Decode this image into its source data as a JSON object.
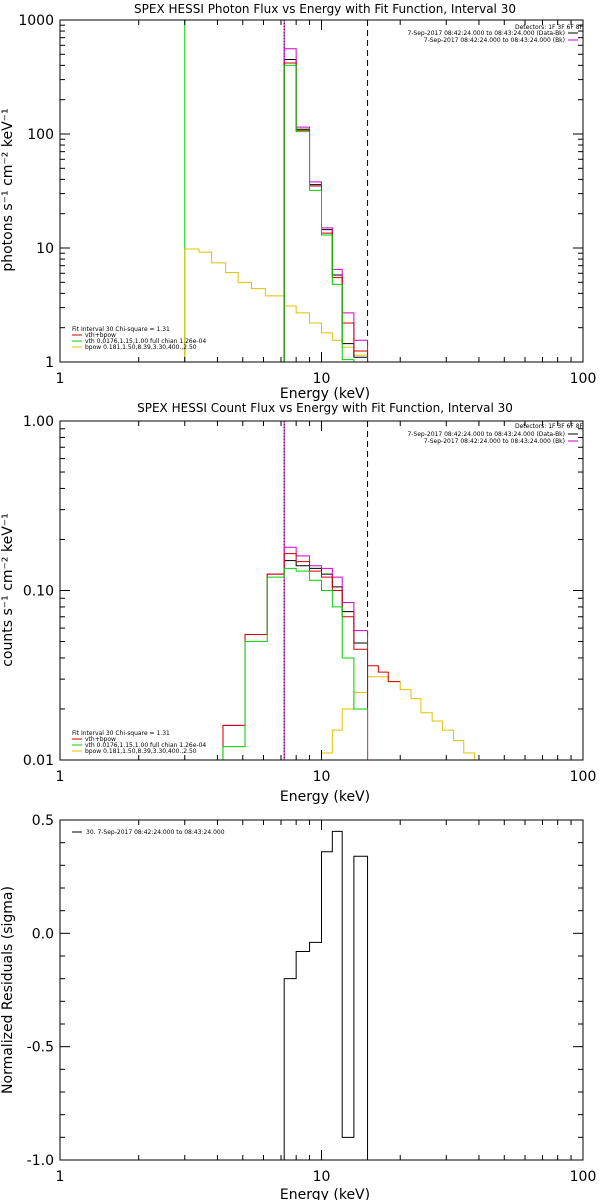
{
  "chart_data": [
    {
      "type": "line",
      "title": "SPEX HESSI Photon Flux vs Energy with Fit Function, Interval 30",
      "xlabel": "Energy (keV)",
      "ylabel": "photons s⁻¹ cm⁻² keV⁻¹",
      "xscale": "log",
      "yscale": "log",
      "xlim": [
        1,
        100
      ],
      "ylim": [
        1,
        1000
      ],
      "xticks": [
        "1",
        "10",
        "100"
      ],
      "yticks": [
        "1",
        "10",
        "100",
        "1000"
      ],
      "grid": false,
      "legend_position": "top-right",
      "detectors_label": "Detectors: 1F 3F 6F 8F",
      "legend": [
        {
          "text": "7-Sep-2017 08:42:24.000 to 08:43:24.000 (Data-Bk)",
          "color": "#000000"
        },
        {
          "text": "7-Sep-2017 08:42:24.000 to 08:43:24.000 (Bk)",
          "color": "#d000d0"
        }
      ],
      "fit_label": "Fit Interval 30   Chi-square = 1.31",
      "fit_legend": [
        {
          "text": "vth+bpow",
          "color": "#d00000"
        },
        {
          "text": "vth 0.0176,1.15,1.00  full chian 1.26e-04",
          "color": "#00d000"
        },
        {
          "text": "bpow 0.181,1.50,8.39,3.30,400.,2.50",
          "color": "#e0c000"
        }
      ],
      "vlines": [
        {
          "x": 3.0,
          "style": "solid",
          "color": "#00d000"
        },
        {
          "x": 7.2,
          "style": "solid",
          "color": "#d000d0"
        },
        {
          "x": 7.2,
          "style": "dotted",
          "color": "#000000"
        },
        {
          "x": 15.0,
          "style": "dashed",
          "color": "#000000"
        }
      ],
      "edges": [
        7.2,
        8.0,
        9.0,
        10.0,
        11.0,
        12.0,
        13.3,
        15.0
      ],
      "series": [
        {
          "color": "#000000",
          "values": [
            450,
            110,
            36,
            14.5,
            5.8,
            1.45,
            1.1
          ]
        },
        {
          "color": "#d000d0",
          "values": [
            560,
            115,
            38,
            15,
            6.5,
            2.7,
            1.55
          ]
        },
        {
          "color": "#d00000",
          "values": [
            420,
            108,
            35,
            13.5,
            5.5,
            2.2,
            1.25
          ]
        },
        {
          "color": "#00d000",
          "values": [
            400,
            105,
            32,
            13,
            4.8,
            1.05,
            0.8
          ]
        }
      ],
      "bpow": {
        "color": "#e0c000",
        "edges": [
          3.0,
          3.4,
          3.8,
          4.3,
          4.8,
          5.4,
          6.1,
          7.2,
          8.0,
          9.0,
          10.0,
          11.0,
          12.0,
          13.3,
          15.0
        ],
        "values": [
          9.8,
          9.2,
          7.4,
          6.1,
          5.0,
          4.4,
          3.8,
          3.1,
          2.7,
          2.2,
          1.8,
          1.55,
          1.35,
          1.15
        ]
      }
    },
    {
      "type": "line",
      "title": "SPEX HESSI Count Flux vs Energy with Fit Function, Interval 30",
      "xlabel": "Energy (keV)",
      "ylabel": "counts s⁻¹ cm⁻² keV⁻¹",
      "xscale": "log",
      "yscale": "log",
      "xlim": [
        1,
        100
      ],
      "ylim": [
        0.01,
        1.0
      ],
      "xticks": [
        "1",
        "10",
        "100"
      ],
      "yticks": [
        "0.01",
        "0.10",
        "1.00"
      ],
      "grid": false,
      "legend_position": "top-right",
      "detectors_label": "Detectors: 1F 3F 6F 8F",
      "legend": [
        {
          "text": "7-Sep-2017 08:42:24.000 to 08:43:24.000 (Data-Bk)",
          "color": "#000000"
        },
        {
          "text": "7-Sep-2017 08:42:24.000 to 08:43:24.000 (Bk)",
          "color": "#d000d0"
        }
      ],
      "fit_label": "Fit Interval 30   Chi-square = 1.31",
      "fit_legend": [
        {
          "text": "vth+bpow",
          "color": "#d00000"
        },
        {
          "text": "vth 0.0176,1.15,1.00  full chian 1.26e-04",
          "color": "#00d000"
        },
        {
          "text": "bpow 0.181,1.50,8.39,3.30,400.,2.50",
          "color": "#e0c000"
        }
      ],
      "vlines": [
        {
          "x": 7.2,
          "style": "solid",
          "color": "#d000d0"
        },
        {
          "x": 7.2,
          "style": "dotted",
          "color": "#000000"
        },
        {
          "x": 15.0,
          "style": "dashed",
          "color": "#000000"
        }
      ],
      "edges": [
        4.2,
        5.1,
        6.2,
        7.2,
        8.0,
        9.0,
        10.0,
        11.0,
        12.0,
        13.3,
        15.0
      ],
      "series": [
        {
          "color": "#000000",
          "values": [
            null,
            null,
            null,
            0.15,
            0.14,
            0.135,
            0.125,
            0.105,
            0.075,
            0.049
          ]
        },
        {
          "color": "#d000d0",
          "values": [
            0.016,
            0.055,
            0.125,
            0.18,
            0.16,
            0.14,
            0.135,
            0.12,
            0.085,
            0.058
          ]
        },
        {
          "color": "#d00000",
          "values": [
            0.016,
            0.055,
            0.125,
            0.165,
            0.148,
            0.13,
            0.12,
            0.1,
            0.07,
            0.045
          ]
        },
        {
          "color": "#00d000",
          "values": [
            0.012,
            0.05,
            0.12,
            0.135,
            0.13,
            0.115,
            0.1,
            0.08,
            0.04,
            0.02
          ]
        }
      ],
      "tail": {
        "color": "#d00000",
        "edges": [
          15.0,
          16.5,
          18.0,
          20.0
        ],
        "values": [
          0.036,
          0.033,
          0.029
        ]
      },
      "bpow": {
        "color": "#e0c000",
        "edges": [
          9.0,
          10.0,
          11.0,
          12.0,
          13.3,
          15.0,
          16.5,
          18.0,
          20.0,
          22.0,
          24.0,
          26.5,
          29.0,
          32.0,
          35.0,
          38.5,
          42.0
        ],
        "values": [
          0.009,
          0.011,
          0.015,
          0.02,
          0.025,
          0.031,
          0.031,
          0.029,
          0.026,
          0.023,
          0.019,
          0.017,
          0.015,
          0.013,
          0.011,
          0.009
        ]
      }
    },
    {
      "type": "line",
      "xlabel": "Energy (keV)",
      "ylabel": "Normalized Residuals (sigma)",
      "xscale": "log",
      "yscale": "linear",
      "xlim": [
        1,
        100
      ],
      "ylim": [
        -1.0,
        0.5
      ],
      "xticks": [
        "1",
        "10",
        "100"
      ],
      "yticks": [
        "-1.0",
        "-0.5",
        "0.0",
        "0.5"
      ],
      "grid": false,
      "legend_position": "top-left",
      "legend": [
        {
          "text": "30.  7-Sep-2017 08:42:24.000 to 08:43:24.000",
          "color": "#000000"
        }
      ],
      "edges": [
        7.2,
        8.0,
        9.0,
        10.0,
        11.0,
        12.0,
        13.3,
        15.0
      ],
      "series": [
        {
          "color": "#000000",
          "values": [
            -0.2,
            -0.08,
            -0.04,
            0.36,
            0.45,
            -0.9,
            0.34
          ]
        }
      ]
    }
  ]
}
